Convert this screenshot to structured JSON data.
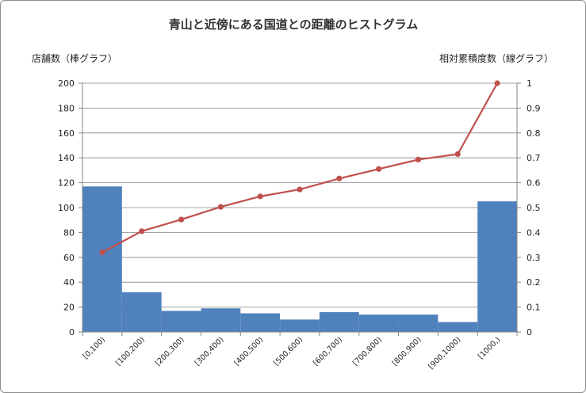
{
  "chart_data": {
    "type": "bar",
    "title": "青山と近傍にある国道との距離のヒストグラム",
    "ylabel_left": "店舗数（棒グラフ）",
    "ylabel_right": "相対累積度数（線グラフ）",
    "categories": [
      "[0,100)",
      "[100,200)",
      "[200,300)",
      "[300,400)",
      "[400,500)",
      "[500,600)",
      "[600,700)",
      "[700,800)",
      "[800,900)",
      "[900,1000)",
      "[1000,)"
    ],
    "series": [
      {
        "type": "bar",
        "axis": "left",
        "values": [
          117,
          32,
          17,
          19,
          15,
          10,
          16,
          14,
          14,
          8,
          105
        ],
        "color": "#4f81bd"
      },
      {
        "type": "line",
        "axis": "right",
        "values": [
          0.32,
          0.405,
          0.452,
          0.503,
          0.545,
          0.573,
          0.617,
          0.655,
          0.693,
          0.715,
          1.0
        ],
        "color": "#c0504d"
      }
    ],
    "ylim_left": [
      0,
      200
    ],
    "yticks_left": [
      "0",
      "20",
      "40",
      "60",
      "80",
      "100",
      "120",
      "140",
      "160",
      "180",
      "200"
    ],
    "ylim_right": [
      0,
      1
    ],
    "yticks_right": [
      "0",
      "0.1",
      "0.2",
      "0.3",
      "0.4",
      "0.5",
      "0.6",
      "0.7",
      "0.8",
      "0.9",
      "1"
    ],
    "grid": true
  }
}
